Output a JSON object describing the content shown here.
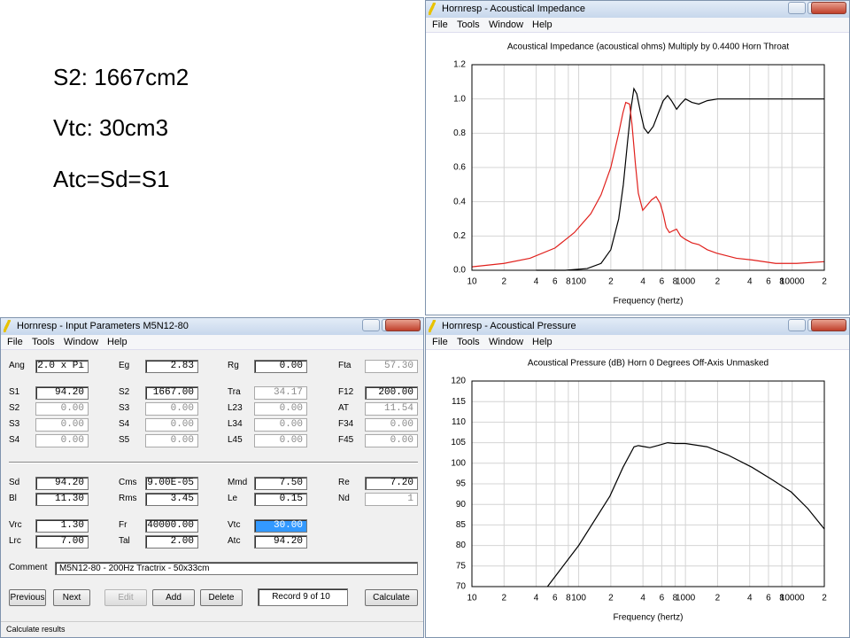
{
  "notes": [
    "S2: 1667cm2",
    "Vtc: 30cm3",
    "Atc=Sd=S1"
  ],
  "windows": [
    {
      "title": "Hornresp - Acoustical Impedance",
      "menu": [
        "File",
        "Tools",
        "Window",
        "Help"
      ]
    },
    {
      "title": "Hornresp - Input Parameters   M5N12-80",
      "menu": [
        "File",
        "Tools",
        "Window",
        "Help"
      ]
    },
    {
      "title": "Hornresp - Acoustical Pressure",
      "menu": [
        "File",
        "Tools",
        "Window",
        "Help"
      ]
    }
  ],
  "chart_data": [
    {
      "type": "line",
      "title": "Acoustical Impedance (acoustical ohms)   Multiply by 0.4400   Horn Throat",
      "x_label": "Frequency (hertz)",
      "x_scale": "log",
      "grid": true,
      "xlim": [
        10,
        20000
      ],
      "xticks": [
        10,
        {
          "value": 20,
          "label": "2"
        },
        {
          "value": 40,
          "label": "4"
        },
        {
          "value": 60,
          "label": "6"
        },
        {
          "value": 80,
          "label": "8"
        },
        100,
        {
          "value": 200,
          "label": "2"
        },
        {
          "value": 400,
          "label": "4"
        },
        {
          "value": 600,
          "label": "6"
        },
        {
          "value": 800,
          "label": "8"
        },
        1000,
        {
          "value": 2000,
          "label": "2"
        },
        {
          "value": 4000,
          "label": "4"
        },
        {
          "value": 6000,
          "label": "6"
        },
        {
          "value": 8000,
          "label": "8"
        },
        10000,
        {
          "value": 20000,
          "label": "2"
        }
      ],
      "ylim": [
        0,
        1.2
      ],
      "yticks": [
        {
          "value": 0,
          "label": "0.0"
        },
        0.2,
        0.4,
        0.6,
        0.8,
        {
          "value": 1,
          "label": "1.0"
        },
        1.2
      ],
      "series": [
        {
          "color": "#000000",
          "x": [
            40,
            75,
            120,
            162,
            200,
            237,
            262,
            287,
            310,
            329,
            350,
            380,
            410,
            447,
            500,
            560,
            620,
            681,
            740,
            827,
            900,
            1000,
            1150,
            1334,
            1600,
            2000,
            3000,
            5000,
            10000,
            20000
          ],
          "values": [
            0,
            0,
            0.01,
            0.04,
            0.12,
            0.3,
            0.5,
            0.75,
            0.95,
            1.06,
            1.03,
            0.92,
            0.83,
            0.8,
            0.84,
            0.92,
            0.99,
            1.02,
            0.99,
            0.94,
            0.97,
            1.0,
            0.98,
            0.97,
            0.99,
            1.0,
            1.0,
            1.0,
            1.0,
            1.0
          ]
        },
        {
          "color": "#e0201c",
          "x": [
            10,
            20,
            35,
            60,
            91,
            130,
            162,
            200,
            237,
            260,
            276,
            300,
            316,
            340,
            362,
            398,
            438,
            480,
            531,
            580,
            619,
            660,
            708,
            760,
            826,
            900,
            1000,
            1150,
            1334,
            1600,
            1957,
            3000,
            4217,
            7000,
            11010,
            20000
          ],
          "values": [
            0.02,
            0.04,
            0.07,
            0.13,
            0.22,
            0.33,
            0.44,
            0.6,
            0.8,
            0.92,
            0.98,
            0.97,
            0.85,
            0.62,
            0.45,
            0.35,
            0.38,
            0.41,
            0.43,
            0.39,
            0.33,
            0.25,
            0.22,
            0.23,
            0.24,
            0.2,
            0.18,
            0.16,
            0.15,
            0.12,
            0.1,
            0.07,
            0.06,
            0.04,
            0.04,
            0.05
          ]
        }
      ]
    },
    {
      "type": "line",
      "title": "Acoustical Pressure (dB)   Horn   0 Degrees Off-Axis   Unmasked",
      "x_label": "Frequency (hertz)",
      "x_scale": "log",
      "grid": true,
      "xlim": [
        10,
        20000
      ],
      "xticks": [
        10,
        {
          "value": 20,
          "label": "2"
        },
        {
          "value": 40,
          "label": "4"
        },
        {
          "value": 60,
          "label": "6"
        },
        {
          "value": 80,
          "label": "8"
        },
        100,
        {
          "value": 200,
          "label": "2"
        },
        {
          "value": 400,
          "label": "4"
        },
        {
          "value": 600,
          "label": "6"
        },
        {
          "value": 800,
          "label": "8"
        },
        1000,
        {
          "value": 2000,
          "label": "2"
        },
        {
          "value": 4000,
          "label": "4"
        },
        {
          "value": 6000,
          "label": "6"
        },
        {
          "value": 8000,
          "label": "8"
        },
        10000,
        {
          "value": 20000,
          "label": "2"
        }
      ],
      "ylim": [
        70,
        120
      ],
      "yticks": [
        70,
        75,
        80,
        85,
        90,
        95,
        100,
        105,
        110,
        115,
        120
      ],
      "series": [
        {
          "color": "#000000",
          "x": [
            51,
            100,
            196,
            260,
            330,
            362,
            420,
            464,
            550,
            681,
            800,
            1000,
            1600,
            2500,
            4217,
            6500,
            9800,
            14000,
            20000
          ],
          "values": [
            70,
            80,
            92,
            99,
            104,
            104.3,
            104,
            103.8,
            104.3,
            105,
            104.8,
            104.8,
            104,
            102,
            99,
            96,
            93,
            89,
            84
          ]
        }
      ]
    }
  ],
  "input": {
    "rows": [
      [
        {
          "label": "Ang",
          "value": "2.0 x Pi"
        },
        {
          "label": "Eg",
          "value": "2.83"
        },
        {
          "label": "Rg",
          "value": "0.00"
        },
        {
          "label": "Fta",
          "value": "57.30",
          "dim": true
        }
      ],
      [
        {
          "label": "S1",
          "value": "94.20"
        },
        {
          "label": "S2",
          "value": "1667.00"
        },
        {
          "label": "Tra",
          "value": "34.17",
          "dim": true
        },
        {
          "label": "F12",
          "value": "200.00"
        }
      ],
      [
        {
          "label": "S2",
          "value": "0.00",
          "dim": true
        },
        {
          "label": "S3",
          "value": "0.00",
          "dim": true
        },
        {
          "label": "L23",
          "value": "0.00",
          "dim": true
        },
        {
          "label": "AT",
          "value": "11.54",
          "dim": true
        }
      ],
      [
        {
          "label": "S3",
          "value": "0.00",
          "dim": true
        },
        {
          "label": "S4",
          "value": "0.00",
          "dim": true
        },
        {
          "label": "L34",
          "value": "0.00",
          "dim": true
        },
        {
          "label": "F34",
          "value": "0.00",
          "dim": true
        }
      ],
      [
        {
          "label": "S4",
          "value": "0.00",
          "dim": true
        },
        {
          "label": "S5",
          "value": "0.00",
          "dim": true
        },
        {
          "label": "L45",
          "value": "0.00",
          "dim": true
        },
        {
          "label": "F45",
          "value": "0.00",
          "dim": true
        }
      ],
      [
        {
          "label": "Sd",
          "value": "94.20"
        },
        {
          "label": "Cms",
          "value": "9.00E-05"
        },
        {
          "label": "Mmd",
          "value": "7.50"
        },
        {
          "label": "Re",
          "value": "7.20"
        }
      ],
      [
        {
          "label": "Bl",
          "value": "11.30"
        },
        {
          "label": "Rms",
          "value": "3.45"
        },
        {
          "label": "Le",
          "value": "0.15"
        },
        {
          "label": "Nd",
          "value": "1",
          "dim": true
        }
      ],
      [
        {
          "label": "Vrc",
          "value": "1.30"
        },
        {
          "label": "Fr",
          "value": "40000.00"
        },
        {
          "label": "Vtc",
          "value": "30.00",
          "selected": true
        }
      ],
      [
        {
          "label": "Lrc",
          "value": "7.00"
        },
        {
          "label": "Tal",
          "value": "2.00"
        },
        {
          "label": "Atc",
          "value": "94.20"
        }
      ]
    ],
    "comment_label": "Comment",
    "comment": "M5N12-80 - 200Hz Tractrix - 50x33cm",
    "buttons": [
      {
        "label": "Previous"
      },
      {
        "label": "Next"
      },
      {
        "label": "Edit",
        "disabled": true
      },
      {
        "label": "Add"
      },
      {
        "label": "Delete"
      }
    ],
    "record": "Record 9 of 10",
    "calculate": "Calculate",
    "status": "Calculate results"
  }
}
